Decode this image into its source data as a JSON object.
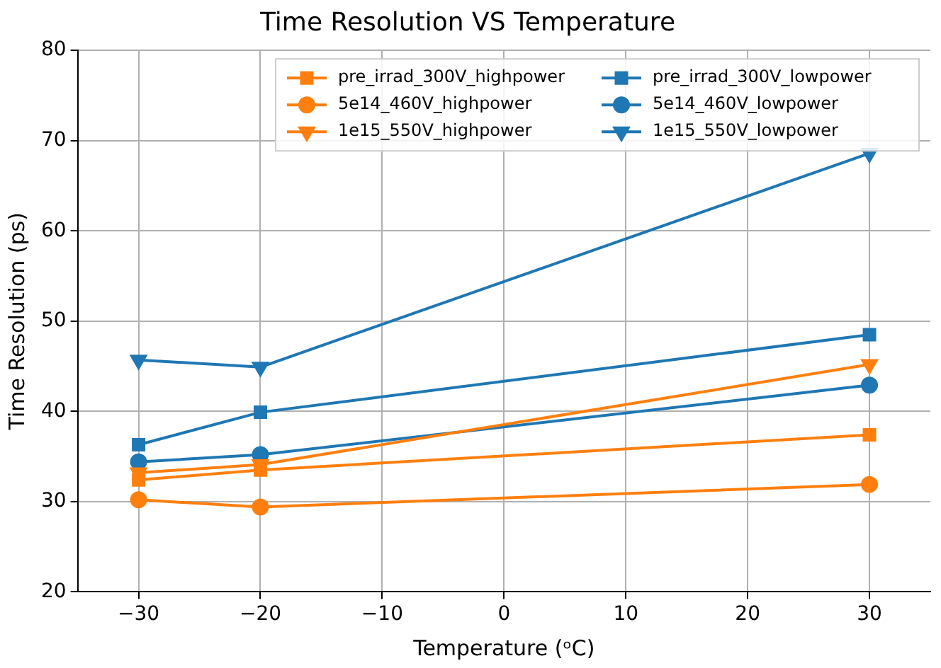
{
  "chart_data": {
    "type": "line",
    "title": "Time Resolution VS Temperature",
    "xlabel": "Temperature (ᵒC)",
    "ylabel": "Time Resolution (ps)",
    "x": [
      -30,
      -20,
      30
    ],
    "xlim": [
      -35,
      35
    ],
    "xticks": [
      -30,
      -20,
      -10,
      0,
      10,
      20,
      30
    ],
    "ylim": [
      20,
      80
    ],
    "yticks": [
      20,
      30,
      40,
      50,
      60,
      70,
      80
    ],
    "grid": true,
    "legend": "top right",
    "line_style": "solid",
    "series": [
      {
        "name": "pre_irrad_300V_highpower",
        "color": "#ff7f0e",
        "marker": "square",
        "values": [
          32.4,
          33.5,
          37.4
        ]
      },
      {
        "name": "5e14_460V_highpower",
        "color": "#ff7f0e",
        "marker": "circle",
        "values": [
          30.2,
          29.4,
          31.9
        ]
      },
      {
        "name": "1e15_550V_highpower",
        "color": "#ff7f0e",
        "marker": "triangle",
        "values": [
          33.2,
          34.1,
          45.2
        ]
      },
      {
        "name": "pre_irrad_300V_lowpower",
        "color": "#1f77b4",
        "marker": "square",
        "values": [
          36.3,
          39.9,
          48.5
        ]
      },
      {
        "name": "5e14_460V_lowpower",
        "color": "#1f77b4",
        "marker": "circle",
        "values": [
          34.4,
          35.2,
          42.9
        ]
      },
      {
        "name": "1e15_550V_lowpower",
        "color": "#1f77b4",
        "marker": "triangle",
        "values": [
          45.7,
          44.9,
          68.6
        ]
      }
    ]
  }
}
